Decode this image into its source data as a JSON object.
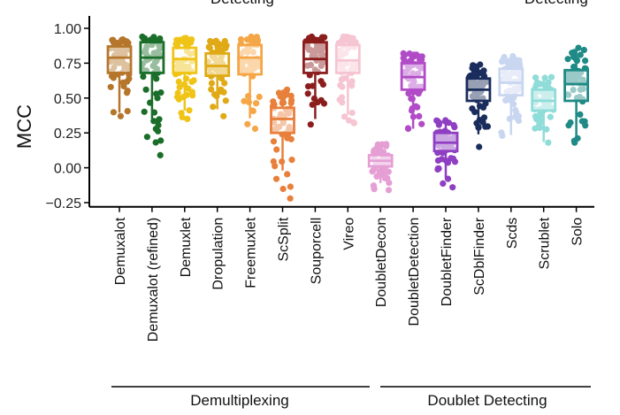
{
  "chart_data": {
    "type": "box",
    "ylabel": "MCC",
    "ylim": [
      -0.28,
      1.0
    ],
    "yticks": [
      "1.00",
      "0.75",
      "0.50",
      "0.25",
      "0.00",
      "−0.25"
    ],
    "ytick_values": [
      1.0,
      0.75,
      0.5,
      0.25,
      0.0,
      -0.25
    ],
    "groups": [
      {
        "label": "Demultiplexing",
        "categories": [
          "Demuxalot",
          "Demuxalot (refined)",
          "Demuxlet",
          "Dropulation",
          "Freemuxlet",
          "ScSplit",
          "Souporcell",
          "Vireo"
        ]
      },
      {
        "label": "Doublet Detecting",
        "categories": [
          "DoubletDecon",
          "DoubletDetection",
          "DoubletFinder",
          "ScDblFinder",
          "Scds",
          "Scrublet",
          "Solo"
        ]
      }
    ],
    "top_cut_labels": [
      "Detecting",
      "Detecting"
    ],
    "series": [
      {
        "name": "Demuxalot",
        "color": "#b5762c",
        "q1": 0.68,
        "median": 0.79,
        "q3": 0.87,
        "min": 0.37,
        "max": 0.92
      },
      {
        "name": "Demuxalot (refined)",
        "color": "#1b6e2a",
        "q1": 0.68,
        "median": 0.79,
        "q3": 0.9,
        "min": 0.09,
        "max": 0.94
      },
      {
        "name": "Demuxlet",
        "color": "#f0c417",
        "q1": 0.68,
        "median": 0.78,
        "q3": 0.86,
        "min": 0.35,
        "max": 0.93
      },
      {
        "name": "Dropulation",
        "color": "#e0aa16",
        "q1": 0.66,
        "median": 0.73,
        "q3": 0.82,
        "min": 0.37,
        "max": 0.91
      },
      {
        "name": "Freemuxlet",
        "color": "#f5a646",
        "q1": 0.67,
        "median": 0.79,
        "q3": 0.88,
        "min": 0.28,
        "max": 0.94
      },
      {
        "name": "ScSplit",
        "color": "#e8803c",
        "q1": 0.25,
        "median": 0.35,
        "q3": 0.43,
        "min": -0.22,
        "max": 0.56
      },
      {
        "name": "Souporcell",
        "color": "#8b1d1d",
        "q1": 0.68,
        "median": 0.78,
        "q3": 0.9,
        "min": 0.31,
        "max": 0.94
      },
      {
        "name": "Vireo",
        "color": "#f6c5d2",
        "q1": 0.68,
        "median": 0.77,
        "q3": 0.88,
        "min": 0.32,
        "max": 0.94
      },
      {
        "name": "DoubletDecon",
        "color": "#e59fd5",
        "q1": 0.01,
        "median": 0.05,
        "q3": 0.09,
        "min": -0.16,
        "max": 0.17
      },
      {
        "name": "DoubletDetection",
        "color": "#b14bc7",
        "q1": 0.56,
        "median": 0.65,
        "q3": 0.75,
        "min": 0.28,
        "max": 0.82
      },
      {
        "name": "DoubletFinder",
        "color": "#8f3fc2",
        "q1": 0.12,
        "median": 0.18,
        "q3": 0.25,
        "min": -0.14,
        "max": 0.34
      },
      {
        "name": "ScDblFinder",
        "color": "#1b2d5c",
        "q1": 0.48,
        "median": 0.56,
        "q3": 0.64,
        "min": 0.15,
        "max": 0.74
      },
      {
        "name": "Scds",
        "color": "#c9d6f0",
        "q1": 0.52,
        "median": 0.61,
        "q3": 0.71,
        "min": 0.23,
        "max": 0.8
      },
      {
        "name": "Scrublet",
        "color": "#8fdcd8",
        "q1": 0.41,
        "median": 0.48,
        "q3": 0.56,
        "min": 0.18,
        "max": 0.65
      },
      {
        "name": "Solo",
        "color": "#1f8a86",
        "q1": 0.48,
        "median": 0.6,
        "q3": 0.7,
        "min": 0.18,
        "max": 0.86
      }
    ],
    "grid": false,
    "legend": "none"
  }
}
